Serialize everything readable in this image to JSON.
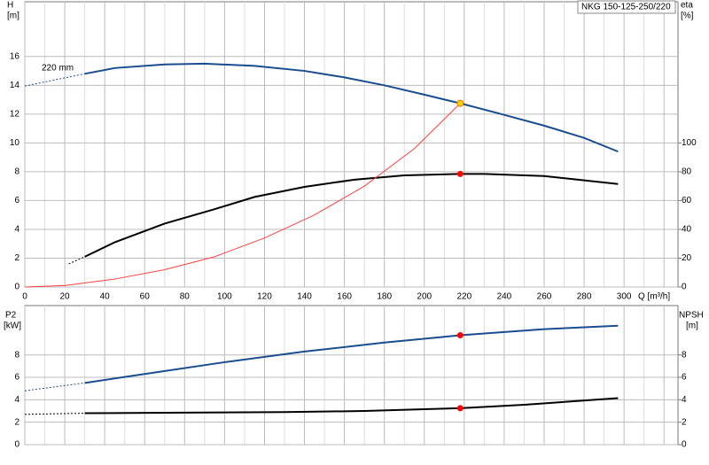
{
  "chart_data": [
    {
      "type": "line",
      "title": "NKG 150-125-250/220",
      "ylabel": "H",
      "yunit": "[m]",
      "y2label": "eta",
      "y2unit": "[%]",
      "xlabel": "Q [m³/h]",
      "annotation": "220 mm",
      "xlim": [
        0,
        327
      ],
      "xticks": [
        0,
        20,
        40,
        60,
        80,
        100,
        120,
        140,
        160,
        180,
        200,
        220,
        240,
        260,
        280,
        300
      ],
      "ylim": [
        0,
        19.8
      ],
      "yticks": [
        0,
        2,
        4,
        6,
        8,
        10,
        12,
        14,
        16
      ],
      "y2lim": [
        0,
        198
      ],
      "y2ticks": [
        0,
        20,
        40,
        60,
        80,
        100
      ],
      "grid": true,
      "series": [
        {
          "color": "#1a4d8f",
          "style": "dashed",
          "x": [
            0,
            30
          ],
          "values": [
            13.95,
            14.8
          ]
        },
        {
          "color": "#1a4d8f",
          "style": "solid",
          "x": [
            30,
            45,
            70,
            90,
            115,
            140,
            160,
            180,
            200,
            218,
            240,
            260,
            280,
            297
          ],
          "values": [
            14.8,
            15.2,
            15.45,
            15.5,
            15.35,
            15.0,
            14.55,
            14.0,
            13.35,
            12.75,
            11.95,
            11.2,
            10.35,
            9.4
          ]
        },
        {
          "color": "#000000",
          "style": "dashed",
          "axis": "y2",
          "x": [
            22,
            30
          ],
          "values": [
            16,
            21
          ]
        },
        {
          "color": "#000000",
          "style": "solid",
          "axis": "y2",
          "x": [
            30,
            45,
            70,
            95,
            115,
            140,
            165,
            190,
            218,
            230,
            260,
            297
          ],
          "values": [
            21,
            31,
            44,
            54,
            62.5,
            69.5,
            74.5,
            77.5,
            78.5,
            78.5,
            77,
            71.5
          ]
        },
        {
          "color": "#ff4040",
          "style": "thin",
          "x": [
            0,
            20,
            45,
            70,
            95,
            120,
            145,
            170,
            195,
            218
          ],
          "values": [
            0,
            0.1,
            0.55,
            1.2,
            2.1,
            3.4,
            5.0,
            7.0,
            9.6,
            12.75
          ]
        }
      ],
      "points": [
        {
          "x": 218,
          "y": 78.5,
          "axis": "y2",
          "color": "#ff0000"
        },
        {
          "x": 218,
          "y": 12.75,
          "color": "#ffcc00"
        }
      ]
    },
    {
      "type": "line",
      "ylabel": "P2",
      "yunit": "[kW]",
      "y2label": "NPSH",
      "y2unit": "[m]",
      "xlim": [
        0,
        327
      ],
      "ylim": [
        0,
        12.4
      ],
      "yticks": [
        0,
        2,
        4,
        6,
        8
      ],
      "y2lim": [
        0,
        12.4
      ],
      "y2ticks": [
        0,
        2,
        4,
        6,
        8
      ],
      "grid": true,
      "series": [
        {
          "color": "#1a4d8f",
          "style": "dashed",
          "x": [
            0,
            30
          ],
          "values": [
            4.8,
            5.5
          ]
        },
        {
          "color": "#1a4d8f",
          "style": "solid",
          "x": [
            30,
            60,
            100,
            140,
            180,
            218,
            260,
            297
          ],
          "values": [
            5.5,
            6.3,
            7.35,
            8.3,
            9.1,
            9.75,
            10.3,
            10.6
          ]
        },
        {
          "color": "#000000",
          "style": "dashed",
          "axis": "y2",
          "x": [
            0,
            30
          ],
          "values": [
            2.7,
            2.8
          ]
        },
        {
          "color": "#000000",
          "style": "solid",
          "axis": "y2",
          "x": [
            30,
            80,
            130,
            170,
            218,
            250,
            297
          ],
          "values": [
            2.8,
            2.85,
            2.9,
            3.0,
            3.25,
            3.55,
            4.15
          ]
        }
      ],
      "points": [
        {
          "x": 218,
          "y": 9.75,
          "color": "#ff0000"
        },
        {
          "x": 218,
          "y": 3.25,
          "axis": "y2",
          "color": "#ff0000"
        }
      ]
    }
  ]
}
